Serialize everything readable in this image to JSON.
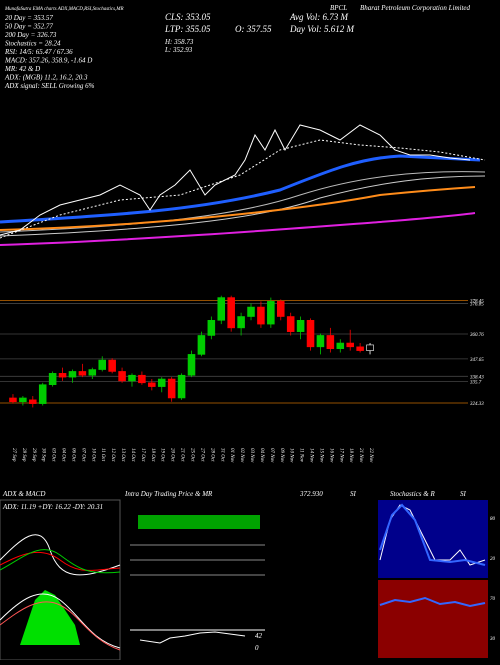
{
  "header": {
    "symbol": "BPCL",
    "company": "Bharat Petroleum Corporation Limited",
    "source": "MunafaSutra EMA charts ADX,MACD,RSI,Stochastics,MR",
    "left": [
      "20 Day = 353.57",
      "50 Day = 352.77",
      "200 Day = 326.73",
      "Stochastics = 28.24",
      "RSI: 14/5: 65.47 / 67.36",
      "MACD: 357.26, 358.9, -1.64 D",
      "MR: 42 & D",
      "ADX: (MGB) 11.2, 16.2, 20.3",
      "ADX signal: SELL Growing 6%"
    ],
    "middle": [
      "CLS: 353.05",
      "LTP: 355.05",
      "O: 357.55",
      "H: 358.73",
      "L: 352.93"
    ],
    "right": [
      "Avg Vol: 6.73 M",
      "Day Vol: 5.612 M"
    ]
  },
  "panels": {
    "adx": "ADX & MACD",
    "adx_values": "ADX: 11.19 +DY: 16.22 -DY: 20.31",
    "intraday": "Intra Day Trading Price & MR",
    "intraday_value": "372.930",
    "intraday_si": "SI",
    "intraday_levels": [
      "42",
      "0"
    ],
    "stoch": "Stochastics & R",
    "stoch_si": "SI",
    "stoch_levels": [
      "80",
      "20"
    ],
    "rsi_levels": [
      "70",
      "30"
    ]
  },
  "chart_data": {
    "type": "candlestick",
    "categories": [
      "27 Sep",
      "28 Sep",
      "29 Sep",
      "30 Sep",
      "03 Oct",
      "04 Oct",
      "06 Oct",
      "07 Oct",
      "10 Oct",
      "11 Oct",
      "12 Oct",
      "13 Oct",
      "14 Oct",
      "17 Oct",
      "18 Oct",
      "19 Oct",
      "20 Oct",
      "21 Oct",
      "25 Oct",
      "27 Oct",
      "28 Oct",
      "31 Oct",
      "01 Nov",
      "02 Nov",
      "03 Nov",
      "04 Nov",
      "07 Nov",
      "09 Nov",
      "10 Nov",
      "11 Nov",
      "14 Nov",
      "15 Nov",
      "16 Nov",
      "17 Nov",
      "18 Nov",
      "21 Nov",
      "22 Nov"
    ],
    "series": [
      {
        "name": "open",
        "values": [
          327,
          325,
          326,
          324,
          334,
          340,
          338,
          341,
          339,
          342,
          347,
          341,
          336,
          339,
          335,
          333,
          337,
          327,
          339,
          350,
          360,
          368,
          380,
          364,
          370,
          375,
          366,
          378,
          370,
          362,
          368,
          354,
          360,
          353,
          356,
          354,
          352
        ]
      },
      {
        "name": "high",
        "values": [
          329,
          328,
          328,
          335,
          341,
          343,
          342,
          345,
          343,
          349,
          348,
          343,
          340,
          341,
          337,
          338,
          338,
          340,
          352,
          362,
          370,
          381,
          381,
          372,
          377,
          378,
          380,
          379,
          372,
          370,
          369,
          361,
          364,
          358,
          363,
          356,
          356
        ]
      },
      {
        "name": "low",
        "values": [
          324,
          323,
          322,
          323,
          333,
          336,
          335,
          338,
          337,
          341,
          340,
          335,
          333,
          334,
          331,
          330,
          325,
          326,
          338,
          349,
          358,
          366,
          362,
          360,
          368,
          364,
          364,
          368,
          360,
          358,
          352,
          350,
          351,
          351,
          352,
          351,
          350
        ]
      },
      {
        "name": "close",
        "values": [
          325,
          327,
          324,
          334,
          340,
          338,
          341,
          339,
          342,
          347,
          341,
          336,
          339,
          335,
          333,
          337,
          327,
          339,
          350,
          360,
          368,
          380,
          364,
          370,
          375,
          366,
          378,
          370,
          362,
          368,
          354,
          360,
          353,
          356,
          354,
          352,
          355
        ]
      }
    ],
    "up_color": "#00cc00",
    "down_color": "#ff0000",
    "ylim": [
      318,
      384
    ],
    "price_levels": [
      {
        "value": 378.45,
        "label": "378.45"
      },
      {
        "value": 376.85,
        "label": "376.85"
      },
      {
        "value": 360.76,
        "label": "360.76"
      },
      {
        "value": 338.43,
        "label": "338.43"
      },
      {
        "value": 347.65,
        "label": "347.65"
      },
      {
        "value": 335.7,
        "label": "335.7"
      },
      {
        "value": 324.33,
        "label": "324.33"
      }
    ]
  }
}
